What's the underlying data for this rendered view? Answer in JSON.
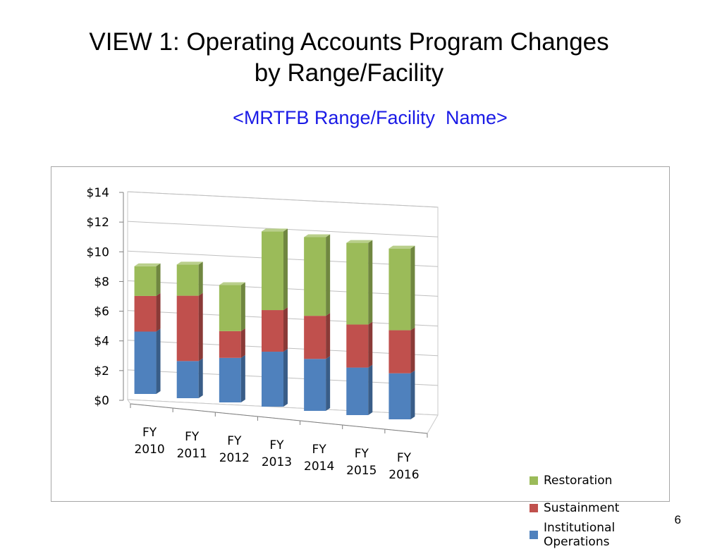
{
  "slide": {
    "title_line1": "VIEW 1:  Operating Accounts Program Changes",
    "title_line2": "by Range/Facility",
    "subtitle": "<MRTFB Range/Facility  Name>",
    "page_number": "6"
  },
  "chart_data": {
    "type": "bar",
    "stacked": true,
    "style": "3d-column",
    "title": "",
    "xlabel": "",
    "ylabel": "",
    "ylim": [
      0,
      14
    ],
    "y_ticks": [
      0,
      2,
      4,
      6,
      8,
      10,
      12,
      14
    ],
    "y_tick_labels": [
      "$0",
      "$2",
      "$4",
      "$6",
      "$8",
      "$10",
      "$12",
      "$14"
    ],
    "grid": true,
    "legend_position": "right",
    "categories": [
      [
        "FY",
        "2010"
      ],
      [
        "FY",
        "2011"
      ],
      [
        "FY",
        "2012"
      ],
      [
        "FY",
        "2013"
      ],
      [
        "FY",
        "2014"
      ],
      [
        "FY",
        "2015"
      ],
      [
        "FY",
        "2016"
      ]
    ],
    "series": [
      {
        "name": "Institutional Operations",
        "color": "#4f81bd",
        "values": [
          4.2,
          2.5,
          3.0,
          3.7,
          3.5,
          3.2,
          3.1
        ]
      },
      {
        "name": "Sustainment",
        "color": "#c0504d",
        "values": [
          2.4,
          4.4,
          1.8,
          2.8,
          2.9,
          2.9,
          2.9
        ]
      },
      {
        "name": "Restoration",
        "color": "#9bbb59",
        "values": [
          2.0,
          2.1,
          3.1,
          5.3,
          5.3,
          5.5,
          5.5
        ]
      }
    ]
  }
}
